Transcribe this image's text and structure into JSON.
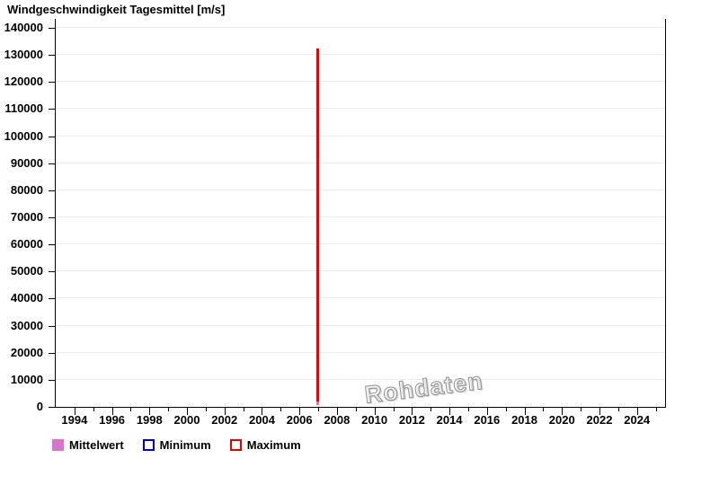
{
  "title": "Windgeschwindigkeit Tagesmittel [m/s]",
  "watermark": {
    "text": "Rohdaten"
  },
  "legend": {
    "items": [
      {
        "label": "Mittelwert",
        "swatch": "filled",
        "color": "#d973cb"
      },
      {
        "label": "Minimum",
        "swatch": "outline",
        "color": "#0000cc"
      },
      {
        "label": "Maximum",
        "swatch": "outline",
        "color": "#e60000"
      }
    ]
  },
  "chart_data": {
    "type": "line",
    "title": "Windgeschwindigkeit Tagesmittel [m/s]",
    "xlabel": "",
    "ylabel": "",
    "grid": "horizontal",
    "grid_color": "#ececec",
    "legend_position": "bottom-left",
    "x_axis": {
      "min": 1993,
      "max": 2025.5,
      "major_ticks": [
        1994,
        1996,
        1998,
        2000,
        2002,
        2004,
        2006,
        2008,
        2010,
        2012,
        2014,
        2016,
        2018,
        2020,
        2022,
        2024
      ],
      "minor_ticks": [
        1995,
        1997,
        1999,
        2001,
        2003,
        2005,
        2007,
        2009,
        2011,
        2013,
        2015,
        2017,
        2019,
        2021,
        2023,
        2025
      ]
    },
    "y_axis": {
      "min": 0,
      "max": 140000,
      "tick_step": 10000,
      "ticks": [
        0,
        10000,
        20000,
        30000,
        40000,
        50000,
        60000,
        70000,
        80000,
        90000,
        100000,
        110000,
        120000,
        130000,
        140000
      ]
    },
    "series": [
      {
        "name": "Mittelwert",
        "color": "#d973cb",
        "style": "vertical-spike",
        "points": [
          {
            "x": 2007,
            "y": 1600
          }
        ]
      },
      {
        "name": "Minimum",
        "color": "#0000cc",
        "style": "vertical-spike",
        "points": [
          {
            "x": 2007,
            "y": 0
          }
        ]
      },
      {
        "name": "Maximum",
        "color": "#ee0000",
        "style": "vertical-spike",
        "points": [
          {
            "x": 2007,
            "y": 131900
          }
        ]
      }
    ],
    "annotations": [
      {
        "text": "Rohdaten",
        "style": "watermark",
        "rotation_deg": -7
      }
    ]
  },
  "colors": {
    "axis": "#000000",
    "background": "#ffffff",
    "watermark": "#8f8f8f",
    "maximum_line": "#ee0000",
    "mittelwert_line": "#d973cb"
  }
}
